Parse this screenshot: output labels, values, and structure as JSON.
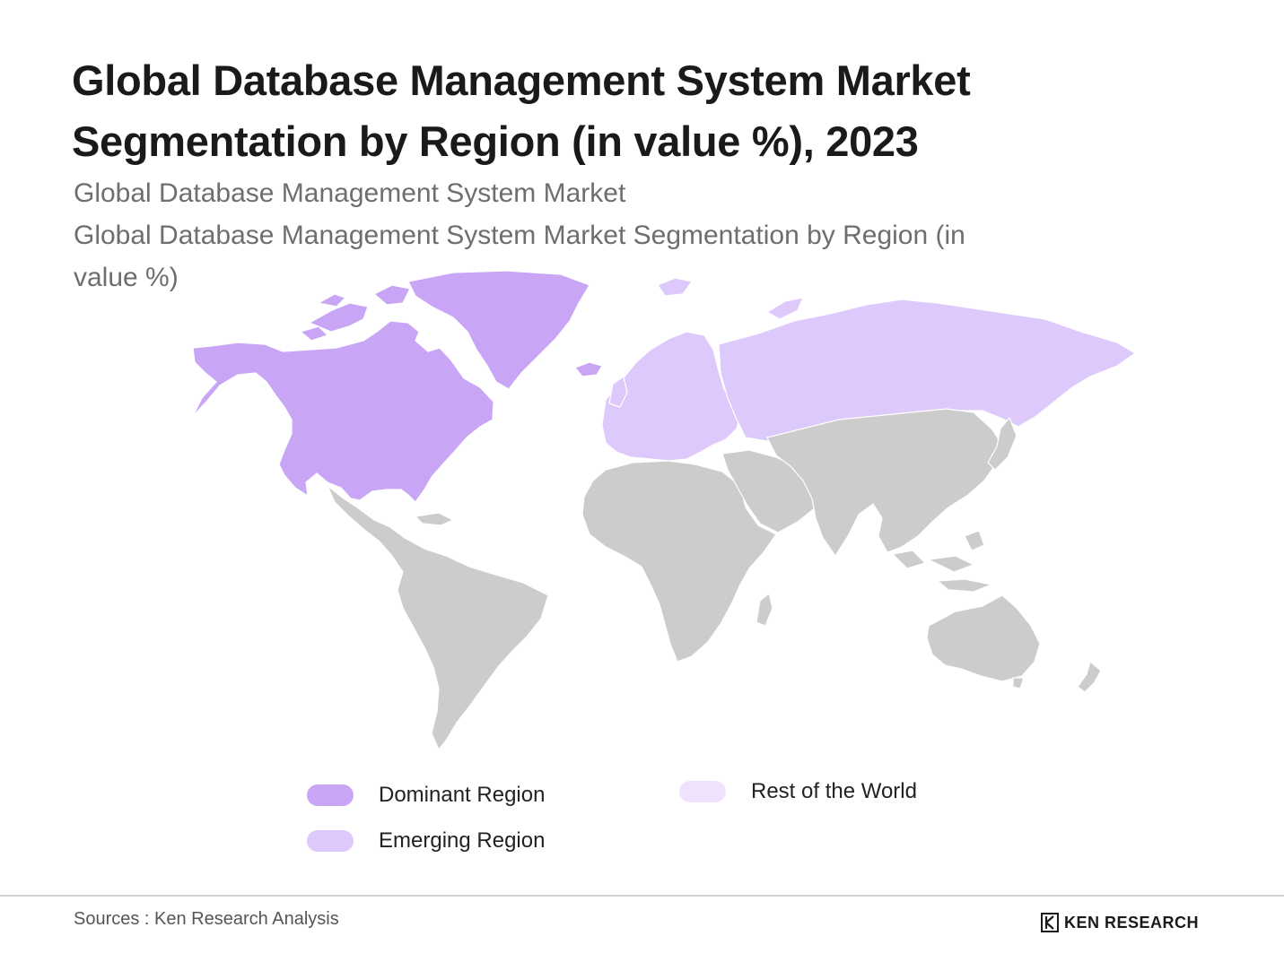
{
  "header": {
    "title_line1": "Global Database Management System Market",
    "title_line2": "Segmentation by Region (in value %), 2023",
    "subtitle_line1": "Global Database Management System Market",
    "subtitle_line2": "Global Database Management System Market Segmentation by Region (in",
    "subtitle_line3": "value %)"
  },
  "colors": {
    "dominant": "#c9a6f5",
    "emerging": "#ddc9fb",
    "rest": "#eee2fd",
    "other_land": "#cccccc",
    "border": "#ffffff"
  },
  "map": {
    "dominant_regions": [
      "north-america",
      "greenland"
    ],
    "emerging_regions": [
      "europe",
      "russia"
    ],
    "other_regions": [
      "latin-america",
      "africa",
      "middle-east",
      "asia",
      "australia"
    ]
  },
  "legend": {
    "items": [
      {
        "label": "Dominant Region",
        "color": "#c9a6f5"
      },
      {
        "label": "Emerging Region",
        "color": "#ddc9fb"
      },
      {
        "label": "Rest of the World",
        "color": "#eee2fd"
      }
    ]
  },
  "footer": {
    "sources": "Sources : Ken Research Analysis",
    "logo_text": "KEN RESEARCH"
  }
}
